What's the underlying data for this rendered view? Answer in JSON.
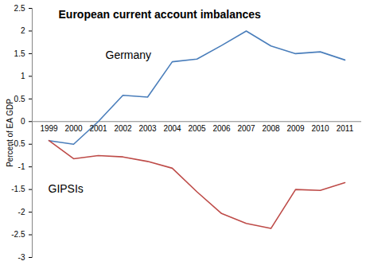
{
  "chart_data": {
    "type": "line",
    "title": "European current account imbalances",
    "ylabel": "Percent of EA GDP",
    "categories": [
      "1999",
      "2000",
      "2001",
      "2002",
      "2003",
      "2004",
      "2005",
      "2006",
      "2007",
      "2008",
      "2009",
      "2010",
      "2011"
    ],
    "series": [
      {
        "name": "Germany",
        "color": "#4a7ebb",
        "values": [
          -0.42,
          -0.5,
          0.0,
          0.58,
          0.54,
          1.32,
          1.38,
          1.68,
          2.0,
          1.67,
          1.5,
          1.54,
          1.36
        ]
      },
      {
        "name": "GIPSIs",
        "color": "#be4b48",
        "values": [
          -0.42,
          -0.82,
          -0.75,
          -0.78,
          -0.88,
          -1.03,
          -1.55,
          -2.03,
          -2.25,
          -2.36,
          -1.5,
          -1.52,
          -1.35
        ]
      }
    ],
    "ylim": [
      -3,
      2.5
    ],
    "yticks": [
      -3,
      -2.5,
      -2,
      -1.5,
      -1,
      -0.5,
      0,
      0.5,
      1,
      1.5,
      2,
      2.5
    ],
    "grid": false
  }
}
